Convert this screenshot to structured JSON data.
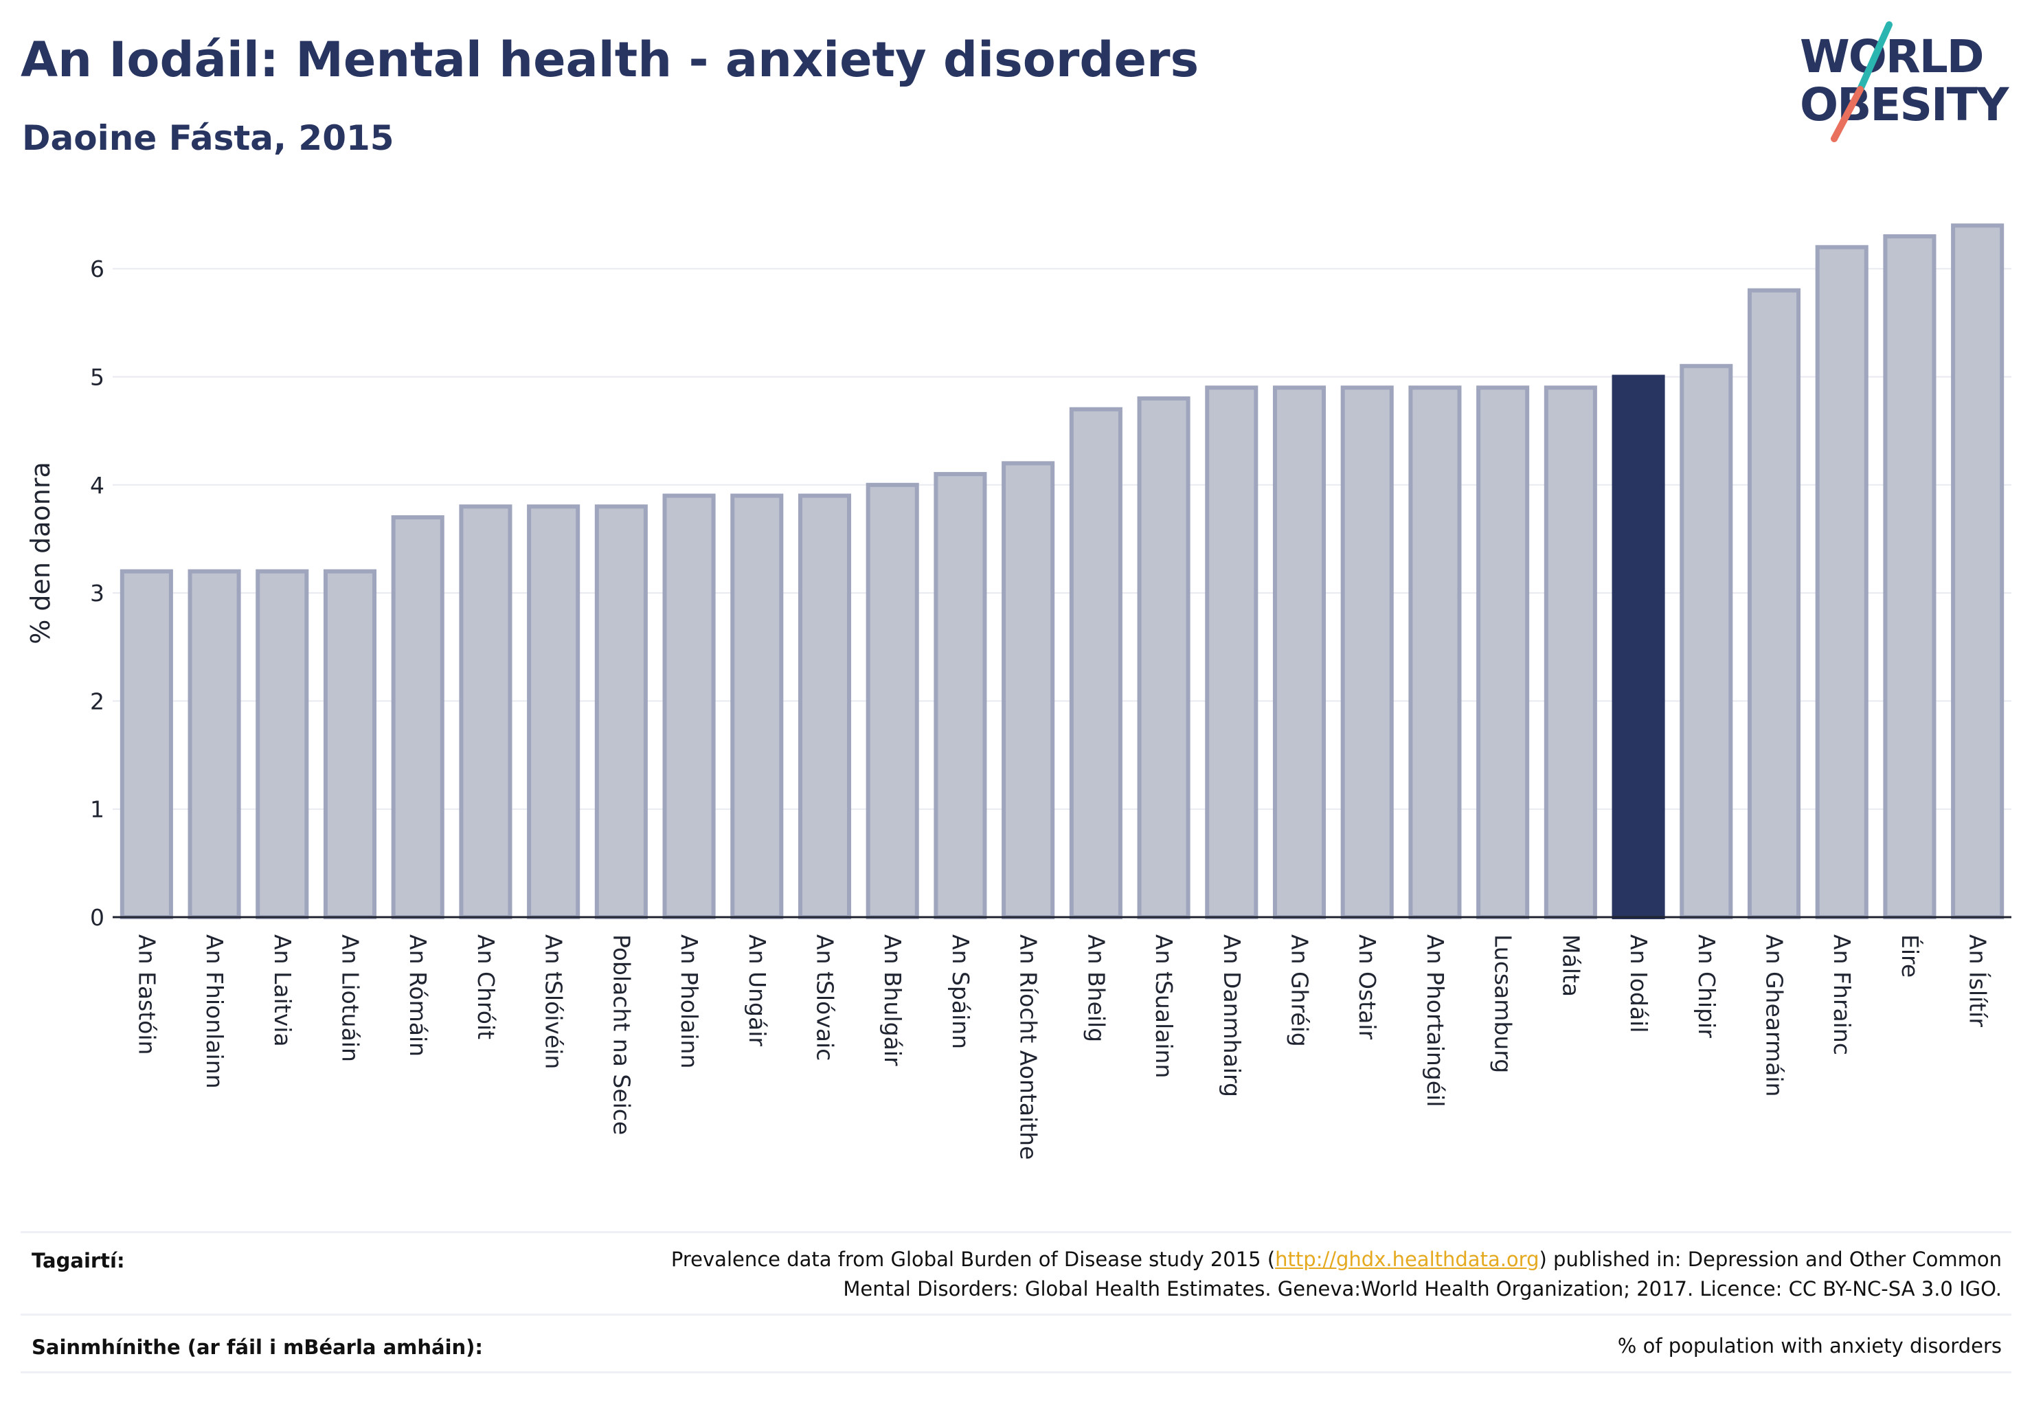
{
  "header": {
    "title": "An Iodáil: Mental health - anxiety disorders",
    "subtitle": "Daoine Fásta, 2015"
  },
  "logo": {
    "line1": "WORLD",
    "line2": "OBESITY",
    "accent_teal": "#2bb5b0",
    "accent_coral": "#e8705c",
    "text_color": "#283561"
  },
  "chart_data": {
    "type": "bar",
    "ylabel": "% den daonra",
    "xlabel": "",
    "ylim": [
      0,
      6.5
    ],
    "yticks": [
      0,
      1,
      2,
      3,
      4,
      5,
      6
    ],
    "grid": true,
    "highlight": "An Iodáil",
    "colors": {
      "bar": "#bfc3cf",
      "bar_border": "#9ea5bd",
      "highlight": "#283561"
    },
    "categories": [
      "An Eastóin",
      "An Fhionlainn",
      "An Laitvia",
      "An Liotuáin",
      "An Rómáin",
      "An Chróit",
      "An tSlóivéin",
      "Poblacht na Seice",
      "An Pholainn",
      "An Ungáir",
      "An tSlóvaic",
      "An Bhulgáir",
      "An Spáinn",
      "An Ríocht Aontaithe",
      "An Bheilg",
      "An tSualainn",
      "An Danmhairg",
      "An Ghréig",
      "An Ostair",
      "An Phortaingéil",
      "Lucsamburg",
      "Málta",
      "An Iodáil",
      "An Chipir",
      "An Ghearmáin",
      "An Fhrainc",
      "Éire",
      "An Íslítír"
    ],
    "values": [
      3.2,
      3.2,
      3.2,
      3.2,
      3.7,
      3.8,
      3.8,
      3.8,
      3.9,
      3.9,
      3.9,
      4.0,
      4.1,
      4.2,
      4.7,
      4.8,
      4.9,
      4.9,
      4.9,
      4.9,
      4.9,
      4.9,
      5.0,
      5.1,
      5.8,
      6.2,
      6.3,
      6.4
    ]
  },
  "footer": {
    "references_label": "Tagairtí:",
    "references_line1_pre": "Prevalence data from Global Burden of Disease study 2015 (",
    "references_link": "http://ghdx.healthdata.org",
    "references_line1_post": ") published in: Depression and Other Common",
    "references_line2": "Mental Disorders: Global Health Estimates. Geneva:World Health Organization; 2017. Licence: CC BY-NC-SA 3.0 IGO.",
    "definitions_label": "Sainmhínithe (ar fáil i mBéarla amháin):",
    "definitions_text": "% of population with anxiety disorders"
  }
}
